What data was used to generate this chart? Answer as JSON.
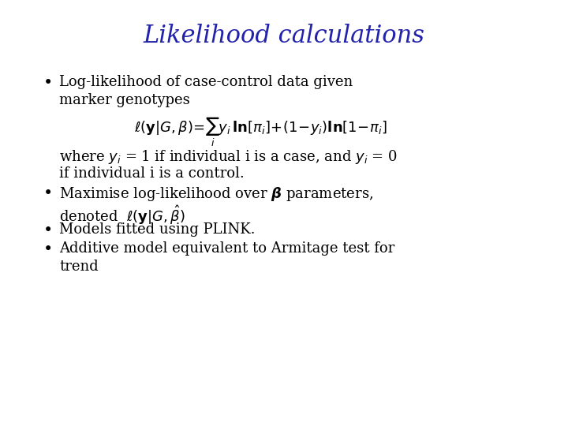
{
  "title": "Likelihood calculations",
  "title_color": "#2222AA",
  "title_fontsize": 22,
  "body_color": "#000000",
  "background_color": "#FFFFFF",
  "bullet1_line1": "Log-likelihood of case-control data given",
  "bullet1_line2": "marker genotypes",
  "bullet3": "Models fitted using PLINK.",
  "bullet4_line1": "Additive model equivalent to Armitage test for",
  "bullet4_line2": "trend",
  "body_fontsize": 13,
  "formula_fontsize": 12
}
